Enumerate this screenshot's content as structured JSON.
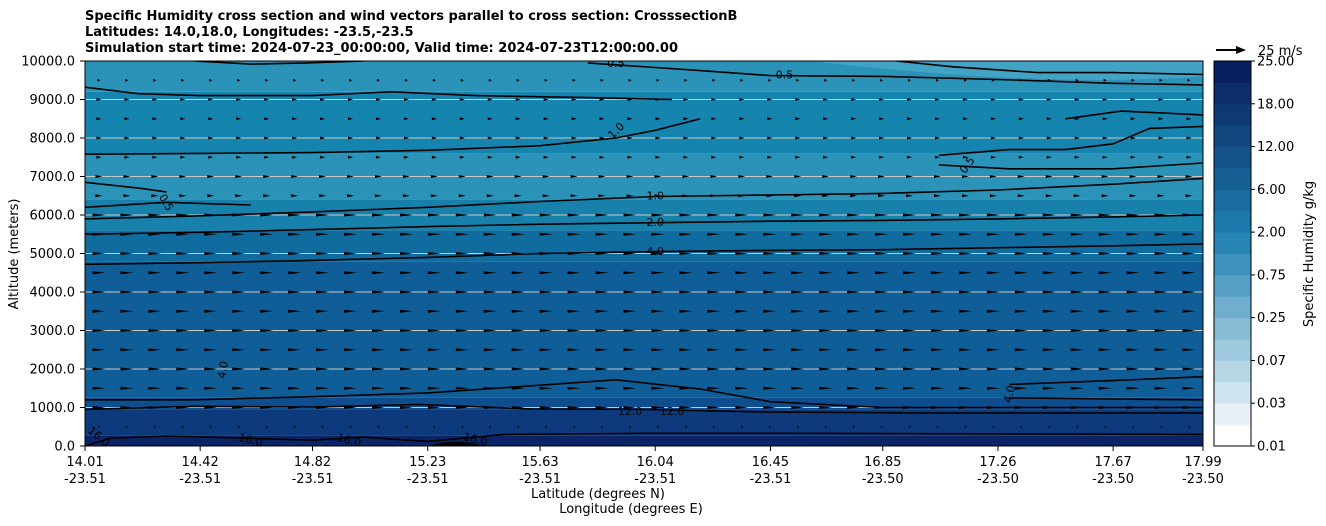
{
  "header": {
    "title_line1": "Specific Humidity cross section and wind vectors parallel to cross section: CrosssectionB",
    "title_line2": "Latitudes: 14.0,18.0, Longitudes: -23.5,-23.5",
    "title_line3": "Simulation start time: 2024-07-23_00:00:00, Valid time: 2024-07-23T12:00:00.00"
  },
  "chart_data": {
    "type": "contour-cross-section",
    "ylabel": "Altitude (meters)",
    "xlabel_lat": "Latitude (degrees N)",
    "xlabel_lon": "Longitude (degrees E)",
    "ylim": [
      0,
      10000
    ],
    "y_ticks": [
      "0.0",
      "1000.0",
      "2000.0",
      "3000.0",
      "4000.0",
      "5000.0",
      "6000.0",
      "7000.0",
      "8000.0",
      "9000.0",
      "10000.0"
    ],
    "y_tick_values": [
      0,
      1000,
      2000,
      3000,
      4000,
      5000,
      6000,
      7000,
      8000,
      9000,
      10000
    ],
    "x_ticks": [
      {
        "lat": "14.01",
        "lon": "-23.51"
      },
      {
        "lat": "14.42",
        "lon": "-23.51"
      },
      {
        "lat": "14.82",
        "lon": "-23.51"
      },
      {
        "lat": "15.23",
        "lon": "-23.51"
      },
      {
        "lat": "15.63",
        "lon": "-23.51"
      },
      {
        "lat": "16.04",
        "lon": "-23.51"
      },
      {
        "lat": "16.45",
        "lon": "-23.51"
      },
      {
        "lat": "16.85",
        "lon": "-23.50"
      },
      {
        "lat": "17.26",
        "lon": "-23.50"
      },
      {
        "lat": "17.67",
        "lon": "-23.50"
      },
      {
        "lat": "17.99",
        "lon": "-23.50"
      }
    ],
    "x_tick_values": [
      14.01,
      14.42,
      14.82,
      15.23,
      15.63,
      16.04,
      16.45,
      16.85,
      17.26,
      17.67,
      17.99
    ],
    "xlim": [
      14.01,
      17.99
    ],
    "colorbar": {
      "label": "Specific Humidity g/kg",
      "tick_labels": [
        "0.01",
        "0.03",
        "0.07",
        "0.25",
        "0.75",
        "2.00",
        "6.00",
        "12.00",
        "18.00",
        "25.00"
      ],
      "levels": 18,
      "color_low": "#ffffff",
      "color_high": "#08215e"
    },
    "quiver_key": "25 m/s",
    "contour_labels": [
      "0.5",
      "0.5",
      "0.5",
      "0.5",
      "1.0",
      "1.0",
      "2.0",
      "4.0",
      "4.0",
      "4.0",
      "12.0",
      "12.0",
      "16.0",
      "16.0",
      "16.0",
      "16.0"
    ],
    "contours": [
      {
        "level": "16.0",
        "points": [
          [
            14.01,
            0.9
          ],
          [
            14.1,
            200
          ],
          [
            14.3,
            260
          ],
          [
            14.6,
            200
          ],
          [
            14.82,
            150
          ],
          [
            15.0,
            230
          ],
          [
            15.23,
            120
          ],
          [
            15.5,
            300
          ],
          [
            16.0,
            330
          ],
          [
            16.5,
            330
          ],
          [
            17.99,
            300
          ]
        ]
      },
      {
        "level": "12.0",
        "points": [
          [
            14.01,
            950
          ],
          [
            14.4,
            1030
          ],
          [
            14.82,
            1010
          ],
          [
            15.2,
            1080
          ],
          [
            15.6,
            960
          ],
          [
            16.0,
            950
          ],
          [
            16.45,
            880
          ],
          [
            17.0,
            860
          ],
          [
            17.99,
            860
          ]
        ]
      },
      {
        "level": "4.0",
        "points": [
          [
            14.01,
            1200
          ],
          [
            14.4,
            1200
          ],
          [
            14.82,
            1280
          ],
          [
            15.23,
            1380
          ],
          [
            15.63,
            1580
          ],
          [
            15.9,
            1720
          ],
          [
            16.2,
            1480
          ],
          [
            16.45,
            1150
          ],
          [
            16.85,
            1000
          ],
          [
            17.26,
            1000
          ],
          [
            17.99,
            1000
          ]
        ]
      },
      {
        "level": "4.0b",
        "points": [
          [
            17.3,
            1600
          ],
          [
            17.67,
            1700
          ],
          [
            17.99,
            1800
          ]
        ]
      },
      {
        "level": "4.0c",
        "points": [
          [
            17.3,
            1250
          ],
          [
            17.67,
            1220
          ],
          [
            17.99,
            1200
          ]
        ]
      },
      {
        "level": "4.0d",
        "points": [
          [
            14.01,
            4720
          ],
          [
            14.42,
            4760
          ],
          [
            14.82,
            4820
          ],
          [
            15.23,
            4900
          ],
          [
            15.63,
            5000
          ],
          [
            16.04,
            5050
          ],
          [
            16.45,
            5080
          ],
          [
            16.85,
            5100
          ],
          [
            17.26,
            5150
          ],
          [
            17.67,
            5200
          ],
          [
            17.99,
            5250
          ]
        ]
      },
      {
        "level": "2.0",
        "points": [
          [
            14.01,
            5500
          ],
          [
            14.42,
            5550
          ],
          [
            14.82,
            5620
          ],
          [
            15.23,
            5700
          ],
          [
            15.63,
            5760
          ],
          [
            16.04,
            5800
          ],
          [
            16.45,
            5840
          ],
          [
            16.85,
            5860
          ],
          [
            17.26,
            5900
          ],
          [
            17.67,
            5950
          ],
          [
            17.99,
            6000
          ]
        ]
      },
      {
        "level": "1.0",
        "points": [
          [
            14.01,
            5900
          ],
          [
            14.42,
            5980
          ],
          [
            14.82,
            6080
          ],
          [
            15.23,
            6200
          ],
          [
            15.63,
            6350
          ],
          [
            16.04,
            6480
          ],
          [
            16.45,
            6520
          ],
          [
            16.85,
            6560
          ],
          [
            17.26,
            6650
          ],
          [
            17.67,
            6800
          ],
          [
            17.99,
            6950
          ]
        ]
      },
      {
        "level": "0.5",
        "points": [
          [
            14.01,
            6200
          ],
          [
            14.3,
            6330
          ],
          [
            14.42,
            6300
          ],
          [
            14.6,
            6260
          ]
        ]
      },
      {
        "level": "0.5b",
        "points": [
          [
            14.01,
            6850
          ],
          [
            14.2,
            6700
          ],
          [
            14.3,
            6600
          ]
        ]
      },
      {
        "level": "0.5c",
        "points": [
          [
            14.01,
            7580
          ],
          [
            14.42,
            7600
          ],
          [
            14.82,
            7620
          ],
          [
            15.23,
            7680
          ],
          [
            15.63,
            7800
          ],
          [
            15.9,
            8000
          ],
          [
            16.04,
            8200
          ],
          [
            16.2,
            8500
          ]
        ]
      },
      {
        "level": "0.5d",
        "points": [
          [
            14.01,
            9320
          ],
          [
            14.2,
            9150
          ],
          [
            14.42,
            9100
          ],
          [
            14.82,
            9100
          ],
          [
            15.1,
            9200
          ],
          [
            15.4,
            9100
          ],
          [
            15.8,
            9050
          ],
          [
            16.1,
            9000
          ]
        ]
      },
      {
        "level": "0.5e",
        "points": [
          [
            15.8,
            9950
          ],
          [
            16.2,
            9750
          ],
          [
            16.45,
            9620
          ],
          [
            16.85,
            9600
          ],
          [
            17.26,
            9520
          ],
          [
            17.67,
            9420
          ],
          [
            17.99,
            9380
          ]
        ]
      },
      {
        "level": "0.5f",
        "points": [
          [
            16.9,
            10000
          ],
          [
            17.1,
            9850
          ],
          [
            17.4,
            9700
          ],
          [
            17.67,
            9700
          ],
          [
            17.99,
            9650
          ]
        ]
      },
      {
        "level": "0.5g",
        "points": [
          [
            17.05,
            7550
          ],
          [
            17.3,
            7700
          ],
          [
            17.5,
            7700
          ],
          [
            17.67,
            7850
          ],
          [
            17.8,
            8250
          ],
          [
            17.99,
            8300
          ]
        ]
      },
      {
        "level": "0.5h",
        "points": [
          [
            17.05,
            7300
          ],
          [
            17.3,
            7200
          ],
          [
            17.67,
            7200
          ],
          [
            17.99,
            7350
          ]
        ]
      },
      {
        "level": "0.5i",
        "points": [
          [
            17.5,
            8500
          ],
          [
            17.7,
            8700
          ],
          [
            17.99,
            8600
          ]
        ]
      },
      {
        "level": "0.9",
        "points": [
          [
            14.4,
            10000
          ],
          [
            14.6,
            9920
          ],
          [
            14.8,
            9950
          ],
          [
            15.0,
            10000
          ]
        ]
      }
    ]
  }
}
